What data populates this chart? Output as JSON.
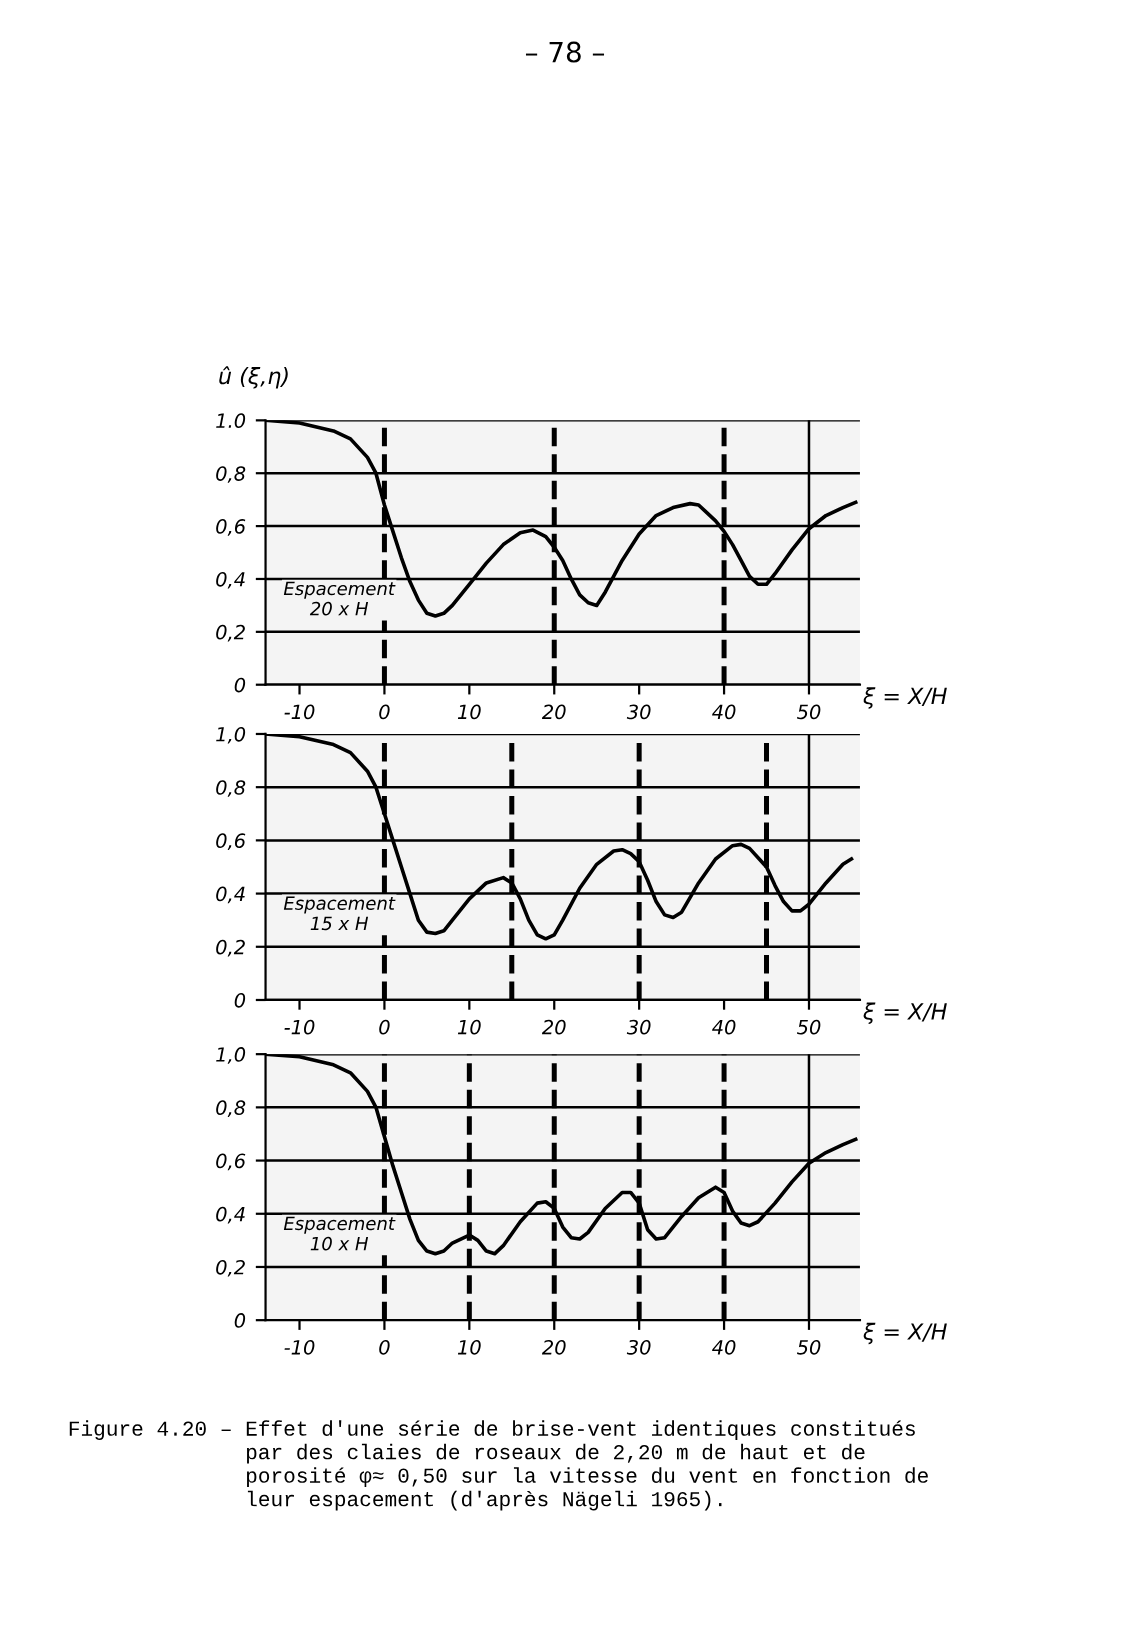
{
  "chart_data": [
    {
      "type": "line",
      "ylabel": "û (ξ,η)",
      "xlabel": "ξ = X/H",
      "annotations": [
        "Espacement\n20 x H",
        "– 78 –"
      ],
      "series": [
        {
          "color": "#000000",
          "x": [
            -14,
            -10,
            -6,
            -4,
            -2,
            -1,
            0,
            1,
            2,
            3,
            4,
            5,
            6,
            7,
            8,
            10,
            12,
            14,
            16,
            17.5,
            19,
            20,
            21,
            22,
            23,
            24,
            25,
            26,
            28,
            30,
            32,
            34,
            36,
            37,
            39,
            40,
            41,
            42,
            43,
            44,
            45,
            46,
            48,
            50,
            52,
            54,
            55.5
          ],
          "values": [
            1.0,
            0.99,
            0.96,
            0.93,
            0.86,
            0.8,
            0.68,
            0.58,
            0.48,
            0.39,
            0.32,
            0.27,
            0.26,
            0.27,
            0.3,
            0.38,
            0.46,
            0.53,
            0.575,
            0.585,
            0.56,
            0.52,
            0.47,
            0.4,
            0.34,
            0.31,
            0.3,
            0.35,
            0.47,
            0.57,
            0.64,
            0.67,
            0.685,
            0.68,
            0.62,
            0.58,
            0.53,
            0.47,
            0.41,
            0.38,
            0.38,
            0.42,
            0.51,
            0.59,
            0.64,
            0.67,
            0.69
          ]
        }
      ],
      "xlim": [
        -14,
        56
      ],
      "xticks": [
        -10,
        0,
        10,
        20,
        30,
        40,
        50
      ],
      "ylim": [
        0,
        1.0
      ],
      "yticks": [
        0,
        {
          "value": 0.2,
          "label": "0,2"
        },
        {
          "value": 0.4,
          "label": "0,4"
        },
        {
          "value": 0.6,
          "label": "0,6"
        },
        {
          "value": 0.8,
          "label": "0,8"
        },
        {
          "value": 1.0,
          "label": "1.0"
        }
      ],
      "grid": "y",
      "line_style": "solid",
      "marker": "none",
      "ref_lines": [
        {
          "axis": "x",
          "value": 0,
          "line_style": "dashed",
          "color": "#000000"
        },
        {
          "axis": "x",
          "value": 20,
          "line_style": "dashed",
          "color": "#000000"
        },
        {
          "axis": "x",
          "value": 40,
          "line_style": "dashed",
          "color": "#000000"
        },
        {
          "axis": "x",
          "value": 50,
          "line_style": "solid",
          "color": "#000000"
        }
      ]
    },
    {
      "type": "line",
      "xlabel": "ξ = X/H",
      "annotations": [
        "Espacement\n15 x H"
      ],
      "series": [
        {
          "color": "#000000",
          "x": [
            -14,
            -10,
            -6,
            -4,
            -2,
            -1,
            0,
            1,
            2,
            3,
            4,
            5,
            6,
            7,
            8,
            10,
            12,
            14,
            15,
            16,
            17,
            18,
            19,
            20,
            21,
            23,
            25,
            27,
            28,
            29,
            30,
            31,
            32,
            33,
            34,
            35,
            37,
            39,
            41,
            42,
            43,
            45,
            46,
            47,
            48,
            49,
            50,
            52,
            54,
            55
          ],
          "values": [
            1.0,
            0.99,
            0.96,
            0.93,
            0.86,
            0.8,
            0.7,
            0.6,
            0.5,
            0.4,
            0.3,
            0.255,
            0.25,
            0.26,
            0.3,
            0.38,
            0.44,
            0.46,
            0.44,
            0.38,
            0.3,
            0.245,
            0.23,
            0.245,
            0.3,
            0.42,
            0.51,
            0.56,
            0.565,
            0.55,
            0.52,
            0.45,
            0.37,
            0.32,
            0.31,
            0.33,
            0.44,
            0.53,
            0.58,
            0.585,
            0.57,
            0.5,
            0.43,
            0.37,
            0.335,
            0.335,
            0.36,
            0.44,
            0.51,
            0.53
          ]
        }
      ],
      "xlim": [
        -14,
        56
      ],
      "xticks": [
        -10,
        0,
        10,
        20,
        30,
        40,
        50
      ],
      "ylim": [
        0,
        1.0
      ],
      "yticks": [
        0,
        {
          "value": 0.2,
          "label": "0,2"
        },
        {
          "value": 0.4,
          "label": "0,4"
        },
        {
          "value": 0.6,
          "label": "0,6"
        },
        {
          "value": 0.8,
          "label": "0,8"
        },
        {
          "value": 1.0,
          "label": "1,0"
        }
      ],
      "grid": "y",
      "line_style": "solid",
      "marker": "none",
      "ref_lines": [
        {
          "axis": "x",
          "value": 0,
          "line_style": "dashed",
          "color": "#000000"
        },
        {
          "axis": "x",
          "value": 15,
          "line_style": "dashed",
          "color": "#000000"
        },
        {
          "axis": "x",
          "value": 30,
          "line_style": "dashed",
          "color": "#000000"
        },
        {
          "axis": "x",
          "value": 45,
          "line_style": "dashed",
          "color": "#000000"
        },
        {
          "axis": "x",
          "value": 50,
          "line_style": "solid",
          "color": "#000000"
        }
      ]
    },
    {
      "type": "line",
      "xlabel": "ξ = X/H",
      "annotations": [
        "Espacement\n10 x H",
        "Figure 4.20 – Effet d'une série de brise-vent identiques constitués\n              par des claies de roseaux de 2,20 m de haut et de\n              porosité φ≈ 0,50 sur la vitesse du vent en fonction de\n              leur espacement (d'après Nägeli 1965)."
      ],
      "series": [
        {
          "color": "#000000",
          "x": [
            -14,
            -10,
            -6,
            -4,
            -2,
            -1,
            0,
            1,
            2,
            3,
            4,
            5,
            6,
            7,
            8,
            10,
            11,
            12,
            13,
            14,
            16,
            18,
            19,
            20,
            21,
            22,
            23,
            24,
            26,
            28,
            29,
            30,
            31,
            32,
            33,
            35,
            37,
            39,
            40,
            41,
            42,
            43,
            44,
            46,
            48,
            50,
            52,
            54,
            55.5
          ],
          "values": [
            1.0,
            0.99,
            0.96,
            0.93,
            0.86,
            0.8,
            0.69,
            0.58,
            0.48,
            0.38,
            0.3,
            0.26,
            0.25,
            0.26,
            0.29,
            0.32,
            0.3,
            0.26,
            0.25,
            0.28,
            0.37,
            0.44,
            0.445,
            0.42,
            0.35,
            0.31,
            0.305,
            0.33,
            0.42,
            0.48,
            0.48,
            0.44,
            0.34,
            0.305,
            0.31,
            0.39,
            0.46,
            0.5,
            0.48,
            0.41,
            0.365,
            0.355,
            0.37,
            0.44,
            0.52,
            0.59,
            0.63,
            0.66,
            0.68
          ]
        }
      ],
      "xlim": [
        -14,
        56
      ],
      "xticks": [
        -10,
        0,
        10,
        20,
        30,
        40,
        50
      ],
      "ylim": [
        0,
        1.0
      ],
      "yticks": [
        0,
        {
          "value": 0.2,
          "label": "0,2"
        },
        {
          "value": 0.4,
          "label": "0,4"
        },
        {
          "value": 0.6,
          "label": "0,6"
        },
        {
          "value": 0.8,
          "label": "0,8"
        },
        {
          "value": 1.0,
          "label": "1,0"
        }
      ],
      "grid": "y",
      "line_style": "solid",
      "marker": "none",
      "ref_lines": [
        {
          "axis": "x",
          "value": 0,
          "line_style": "dashed",
          "color": "#000000"
        },
        {
          "axis": "x",
          "value": 10,
          "line_style": "dashed",
          "color": "#000000"
        },
        {
          "axis": "x",
          "value": 20,
          "line_style": "dashed",
          "color": "#000000"
        },
        {
          "axis": "x",
          "value": 30,
          "line_style": "dashed",
          "color": "#000000"
        },
        {
          "axis": "x",
          "value": 40,
          "line_style": "dashed",
          "color": "#000000"
        },
        {
          "axis": "x",
          "value": 50,
          "line_style": "solid",
          "color": "#000000"
        }
      ]
    }
  ]
}
